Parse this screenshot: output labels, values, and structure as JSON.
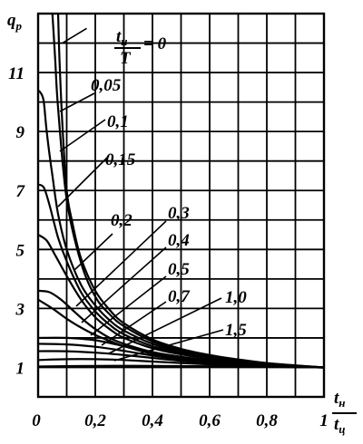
{
  "chart_data": {
    "type": "line",
    "title": "",
    "xlabel": {
      "num": "t",
      "num_sub": "н",
      "den": "t",
      "den_sub": "ц"
    },
    "ylabel": {
      "main": "q",
      "sub": "p"
    },
    "legend_formula": {
      "num": "t",
      "num_sub": "н",
      "den": "T",
      "eq": "= 0"
    },
    "xlim": [
      0,
      1
    ],
    "ylim": [
      0,
      13
    ],
    "xticks": [
      {
        "v": 0,
        "label": "0"
      },
      {
        "v": 0.2,
        "label": "0,2"
      },
      {
        "v": 0.4,
        "label": "0,4"
      },
      {
        "v": 0.6,
        "label": "0,6"
      },
      {
        "v": 0.8,
        "label": "0,8"
      },
      {
        "v": 1,
        "label": "1"
      }
    ],
    "yticks": [
      {
        "v": 1,
        "label": "1"
      },
      {
        "v": 3,
        "label": "3"
      },
      {
        "v": 5,
        "label": "5"
      },
      {
        "v": 7,
        "label": "7"
      },
      {
        "v": 9,
        "label": "9"
      },
      {
        "v": 11,
        "label": "11"
      }
    ],
    "grid": true,
    "series": [
      {
        "name": "0",
        "x": [
          0.07,
          0.075,
          0.085,
          0.1,
          0.12,
          0.15,
          0.2,
          0.25,
          0.3,
          0.4,
          0.5,
          0.6,
          0.7,
          0.8,
          0.9,
          1.0
        ],
        "y": [
          13.0,
          11.4,
          9.2,
          7.0,
          5.9,
          4.7,
          3.6,
          2.95,
          2.5,
          1.95,
          1.63,
          1.42,
          1.27,
          1.15,
          1.07,
          1.0
        ]
      },
      {
        "name": "0,05",
        "x": [
          0.05,
          0.06,
          0.07,
          0.1,
          0.15,
          0.2,
          0.25,
          0.3,
          0.4,
          0.5,
          0.6,
          0.7,
          0.8,
          0.9,
          1.0
        ],
        "y": [
          13.0,
          11.4,
          9.8,
          6.7,
          4.55,
          3.4,
          2.8,
          2.4,
          1.88,
          1.58,
          1.38,
          1.24,
          1.13,
          1.06,
          1.0
        ]
      },
      {
        "name": "0,1",
        "x": [
          0.0,
          0.01,
          0.02,
          0.03,
          0.05,
          0.07,
          0.1,
          0.15,
          0.2,
          0.25,
          0.3,
          0.4,
          0.5,
          0.6,
          0.7,
          0.8,
          0.9,
          1.0
        ],
        "y": [
          10.4,
          10.3,
          10.0,
          9.0,
          7.5,
          6.2,
          5.0,
          3.8,
          3.1,
          2.6,
          2.25,
          1.8,
          1.53,
          1.35,
          1.21,
          1.11,
          1.05,
          1.0
        ]
      },
      {
        "name": "0,15",
        "x": [
          0.0,
          0.02,
          0.04,
          0.07,
          0.1,
          0.15,
          0.2,
          0.25,
          0.3,
          0.4,
          0.5,
          0.6,
          0.7,
          0.8,
          0.9,
          1.0
        ],
        "y": [
          7.2,
          7.1,
          6.5,
          5.4,
          4.6,
          3.55,
          2.9,
          2.45,
          2.12,
          1.72,
          1.48,
          1.31,
          1.19,
          1.1,
          1.04,
          1.0
        ]
      },
      {
        "name": "0,2",
        "x": [
          0.0,
          0.03,
          0.06,
          0.1,
          0.15,
          0.2,
          0.25,
          0.3,
          0.4,
          0.5,
          0.6,
          0.7,
          0.8,
          0.9,
          1.0
        ],
        "y": [
          5.5,
          5.3,
          4.8,
          4.1,
          3.3,
          2.7,
          2.3,
          2.0,
          1.65,
          1.44,
          1.29,
          1.18,
          1.1,
          1.04,
          1.0
        ]
      },
      {
        "name": "0,3",
        "x": [
          0.0,
          0.04,
          0.08,
          0.12,
          0.16,
          0.2,
          0.25,
          0.3,
          0.4,
          0.5,
          0.6,
          0.7,
          0.8,
          0.9,
          1.0
        ],
        "y": [
          3.6,
          3.55,
          3.3,
          2.95,
          2.6,
          2.3,
          2.0,
          1.8,
          1.52,
          1.36,
          1.24,
          1.15,
          1.08,
          1.03,
          1.0
        ]
      },
      {
        "name": "0,4",
        "x": [
          0.0,
          0.05,
          0.1,
          0.15,
          0.2,
          0.25,
          0.3,
          0.4,
          0.5,
          0.6,
          0.7,
          0.8,
          0.9,
          1.0
        ],
        "y": [
          3.3,
          3.0,
          2.65,
          2.35,
          2.1,
          1.9,
          1.72,
          1.46,
          1.31,
          1.2,
          1.13,
          1.07,
          1.03,
          1.0
        ]
      },
      {
        "name": "0,5",
        "x": [
          0.0,
          0.1,
          0.2,
          0.3,
          0.4,
          0.5,
          0.6,
          0.7,
          0.8,
          0.9,
          1.0
        ],
        "y": [
          2.0,
          2.0,
          1.92,
          1.72,
          1.5,
          1.32,
          1.2,
          1.12,
          1.06,
          1.02,
          1.0
        ]
      },
      {
        "name": "0,7",
        "x": [
          0.0,
          0.1,
          0.2,
          0.3,
          0.4,
          0.5,
          0.6,
          0.7,
          0.8,
          0.9,
          1.0
        ],
        "y": [
          1.8,
          1.78,
          1.7,
          1.56,
          1.4,
          1.27,
          1.17,
          1.1,
          1.05,
          1.02,
          1.0
        ]
      },
      {
        "name": "1,0",
        "x": [
          0.0,
          0.1,
          0.2,
          0.3,
          0.4,
          0.5,
          0.6,
          0.7,
          0.8,
          0.9,
          1.0
        ],
        "y": [
          1.55,
          1.55,
          1.5,
          1.42,
          1.32,
          1.22,
          1.14,
          1.08,
          1.04,
          1.01,
          1.0
        ]
      },
      {
        "name": "1,5",
        "x": [
          0.0,
          0.1,
          0.2,
          0.3,
          0.4,
          0.5,
          0.6,
          0.7,
          0.8,
          0.9,
          1.0
        ],
        "y": [
          1.25,
          1.28,
          1.28,
          1.25,
          1.2,
          1.15,
          1.1,
          1.06,
          1.03,
          1.01,
          1.0
        ]
      },
      {
        "name": "",
        "x": [
          0.0,
          0.2,
          0.4,
          0.6,
          0.8,
          1.0
        ],
        "y": [
          1.03,
          1.05,
          1.05,
          1.04,
          1.02,
          1.0
        ]
      }
    ],
    "annotations": [
      {
        "series": "0,05",
        "text": "0,05"
      },
      {
        "series": "0,1",
        "text": "0,1"
      },
      {
        "series": "0,15",
        "text": "0,15"
      },
      {
        "series": "0,2",
        "text": "0,2"
      },
      {
        "series": "0,3",
        "text": "0,3"
      },
      {
        "series": "0,4",
        "text": "0,4"
      },
      {
        "series": "0,5",
        "text": "0,5"
      },
      {
        "series": "0,7",
        "text": "0,7"
      },
      {
        "series": "1,0",
        "text": "1,0"
      },
      {
        "series": "1,5",
        "text": "1,5"
      }
    ]
  }
}
